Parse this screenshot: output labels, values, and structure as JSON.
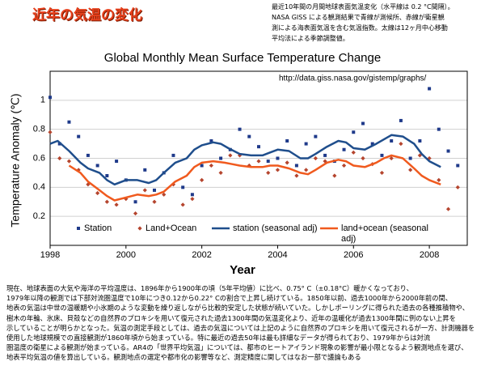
{
  "header": {
    "title": "近年の気温の変化",
    "note_lines": [
      "最近10年間の月間地球表面気温変化（水平線は 0.2 °C間隔）。",
      "NASA GISS による観測結果で青線が測候所、赤線が衛星観",
      "測による海表面気温を含む気温指数。太線は12ヶ月中心移動",
      "平均法による季節調整値。"
    ]
  },
  "chart_data": {
    "type": "combo",
    "title": "Global Monthly Mean Surface Temperature Change",
    "annotation": "http://data.giss.nasa.gov/gistemp/graphs/",
    "x_label": "Year",
    "y_label": "Temperature Anomaly (℃)",
    "xlim": [
      1998,
      2009
    ],
    "xticks": [
      1998,
      2000,
      2002,
      2004,
      2006,
      2008
    ],
    "ylim": [
      0,
      1.2
    ],
    "yticks": [
      0.2,
      0.4,
      0.6,
      0.8,
      1
    ],
    "grid": true,
    "series": [
      {
        "name": "Station",
        "type": "scatter",
        "marker": "square",
        "color": "#1f3a8a",
        "x": [
          1998,
          1998.25,
          1998.5,
          1998.75,
          1999,
          1999.25,
          1999.5,
          1999.75,
          2000,
          2000.25,
          2000.5,
          2000.75,
          2001,
          2001.25,
          2001.5,
          2001.75,
          2002,
          2002.25,
          2002.5,
          2002.75,
          2003,
          2003.25,
          2003.5,
          2003.75,
          2004,
          2004.25,
          2004.5,
          2004.75,
          2005,
          2005.25,
          2005.5,
          2005.75,
          2006,
          2006.25,
          2006.5,
          2006.75,
          2007,
          2007.25,
          2007.5,
          2007.75,
          2008,
          2008.25,
          2008.5,
          2008.75
        ],
        "values": [
          1.02,
          0.7,
          0.85,
          0.75,
          0.62,
          0.55,
          0.48,
          0.58,
          0.45,
          0.3,
          0.52,
          0.38,
          0.5,
          0.62,
          0.4,
          0.35,
          0.55,
          0.72,
          0.6,
          0.66,
          0.8,
          0.75,
          0.68,
          0.58,
          0.6,
          0.72,
          0.55,
          0.7,
          0.75,
          0.62,
          0.58,
          0.66,
          0.78,
          0.84,
          0.7,
          0.62,
          0.72,
          0.86,
          0.6,
          0.72,
          1.08,
          0.8,
          0.65,
          0.55
        ]
      },
      {
        "name": "Land+Ocean",
        "type": "scatter",
        "marker": "diamond",
        "color": "#b5452e",
        "x": [
          1998,
          1998.25,
          1998.5,
          1998.75,
          1999,
          1999.25,
          1999.5,
          1999.75,
          2000,
          2000.25,
          2000.5,
          2000.75,
          2001,
          2001.25,
          2001.5,
          2001.75,
          2002,
          2002.25,
          2002.5,
          2002.75,
          2003,
          2003.25,
          2003.5,
          2003.75,
          2004,
          2004.25,
          2004.5,
          2004.75,
          2005,
          2005.25,
          2005.5,
          2005.75,
          2006,
          2006.25,
          2006.5,
          2006.75,
          2007,
          2007.25,
          2007.5,
          2007.75,
          2008,
          2008.25,
          2008.5,
          2008.75
        ],
        "values": [
          0.78,
          0.6,
          0.58,
          0.52,
          0.42,
          0.36,
          0.3,
          0.28,
          0.32,
          0.22,
          0.38,
          0.3,
          0.35,
          0.42,
          0.28,
          0.32,
          0.45,
          0.55,
          0.5,
          0.62,
          0.62,
          0.55,
          0.58,
          0.5,
          0.52,
          0.57,
          0.48,
          0.52,
          0.6,
          0.58,
          0.48,
          0.55,
          0.64,
          0.6,
          0.56,
          0.5,
          0.6,
          0.7,
          0.52,
          0.62,
          0.6,
          0.45,
          0.25,
          0.4
        ]
      },
      {
        "name": "station (seasonal adj)",
        "type": "line",
        "color": "#1f4e8c",
        "x": [
          1998,
          1998.2,
          1998.5,
          1998.8,
          1999,
          1999.3,
          1999.5,
          1999.7,
          2000,
          2000.3,
          2000.6,
          2000.8,
          2001,
          2001.3,
          2001.6,
          2001.8,
          2002,
          2002.3,
          2002.5,
          2002.7,
          2003,
          2003.3,
          2003.6,
          2003.8,
          2004,
          2004.3,
          2004.6,
          2004.8,
          2005,
          2005.3,
          2005.6,
          2005.8,
          2006,
          2006.3,
          2006.6,
          2006.8,
          2007,
          2007.3,
          2007.6,
          2007.8,
          2008,
          2008.3
        ],
        "values": [
          0.7,
          0.72,
          0.65,
          0.57,
          0.53,
          0.5,
          0.45,
          0.42,
          0.45,
          0.45,
          0.43,
          0.45,
          0.5,
          0.57,
          0.6,
          0.66,
          0.69,
          0.71,
          0.7,
          0.67,
          0.63,
          0.62,
          0.62,
          0.64,
          0.66,
          0.65,
          0.6,
          0.6,
          0.63,
          0.68,
          0.72,
          0.71,
          0.67,
          0.66,
          0.7,
          0.73,
          0.76,
          0.75,
          0.7,
          0.63,
          0.58,
          0.54
        ]
      },
      {
        "name": "land+ocean (seasonal adj)",
        "type": "line",
        "color": "#f05a1e",
        "x": [
          1998.5,
          1998.8,
          1999,
          1999.3,
          1999.5,
          1999.7,
          2000,
          2000.3,
          2000.6,
          2000.8,
          2001,
          2001.3,
          2001.6,
          2001.8,
          2002,
          2002.3,
          2002.6,
          2002.8,
          2003,
          2003.3,
          2003.6,
          2003.8,
          2004,
          2004.3,
          2004.6,
          2004.8,
          2005,
          2005.3,
          2005.6,
          2005.8,
          2006,
          2006.3,
          2006.6,
          2006.8,
          2007,
          2007.3,
          2007.6,
          2007.8,
          2008,
          2008.3
        ],
        "values": [
          0.55,
          0.5,
          0.44,
          0.38,
          0.34,
          0.31,
          0.33,
          0.35,
          0.34,
          0.35,
          0.37,
          0.44,
          0.48,
          0.54,
          0.57,
          0.58,
          0.57,
          0.56,
          0.55,
          0.54,
          0.54,
          0.55,
          0.55,
          0.53,
          0.5,
          0.49,
          0.52,
          0.57,
          0.59,
          0.58,
          0.55,
          0.54,
          0.57,
          0.6,
          0.62,
          0.6,
          0.53,
          0.48,
          0.45,
          0.42
        ]
      }
    ]
  },
  "body": {
    "lines": [
      "現在、地球表面の大気や海洋の平均温度は、1896年から1900年の頃（5年平均値）に比べ、0.75° C（±0.18°C）暖かくなっており、",
      "1979年以降の観測では下部対流圏温度で10年につき0.12から0.22° Cの割合で上昇し続けている。1850年以前、過去1000年から2000年前の間、",
      "地表の気温は中世の温暖期や小氷期のような変動を繰り返しながら比較的安定した状態が続いていた。しかしボーリングに得られた過去の各種推積物や、",
      "樹木の年輪、氷床、貝殻などの自然界のプロキシを用いて復元された過去1300年間の気温変化より、近年の温暖化が過去1300年間に例のない上昇を",
      "示していることが明らかとなった。気温の測定手段としては、過去の気温については上記のように自然界のプロキシを用いて復元されるが一方、計測機器を",
      "使用した地球規模での直接観測が1860年頃から始まっている。特に最近の過去50年は最も詳細なデータが得られており、1979年からは対流",
      "圏温度の衛星による観測が始まっている。AR4の「世界平均気温」については、都市のヒートアイランド現象の影響が最小限となるよう観測地点を選び、",
      "地表平均気温の値を算出している。観測地点の選定や都市化の影響等など、測定精度に関してはなお一部で議論もある"
    ]
  }
}
